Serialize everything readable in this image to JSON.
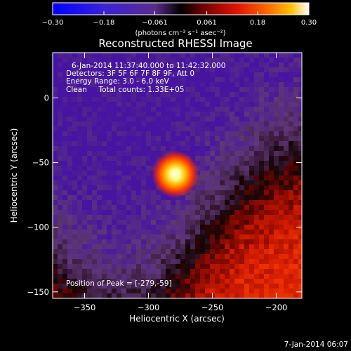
{
  "chart_data": {
    "type": "heatmap",
    "title": "Reconstructed RHESSI Image",
    "xlabel": "Heliocentric X (arcsec)",
    "ylabel": "Heliocentric Y (arcsec)",
    "xlim": [
      -375,
      -180
    ],
    "ylim": [
      -155,
      35
    ],
    "x_ticks": [
      -350,
      -300,
      -250,
      -200
    ],
    "x_tick_labels": [
      "−350",
      "−300",
      "−250",
      "−200"
    ],
    "y_ticks": [
      -150,
      -100,
      -50,
      0
    ],
    "y_tick_labels": [
      "−150",
      "−100",
      "−50",
      "0"
    ],
    "colorbar": {
      "range": [
        -0.3,
        0.3
      ],
      "ticks": [
        -0.3,
        -0.18,
        -0.061,
        0.061,
        0.18,
        0.3
      ],
      "tick_labels": [
        "−0.30",
        "−0.18",
        "−0.061",
        "0.061",
        "0.18",
        "0.30"
      ],
      "units_label": "(photons cm⁻² s⁻¹ asec⁻²)"
    },
    "peak": {
      "x": -279,
      "y": -59,
      "value": 0.3
    },
    "annotations": {
      "time_range": "6-Jan-2014 11:37:40.000 to 11:42:32.000",
      "detectors": "Detectors: 3F 5F 6F 7F 8F 9F, Att 0",
      "energy_range": "Energy Range: 3.0 - 6.0 keV",
      "clean_counts": "Clean     Total counts: 1.33E+05",
      "peak_position": "Position of Peak = [-279,-59]"
    }
  },
  "footer": {
    "timestamp": "7-Jan-2014 06:07"
  }
}
